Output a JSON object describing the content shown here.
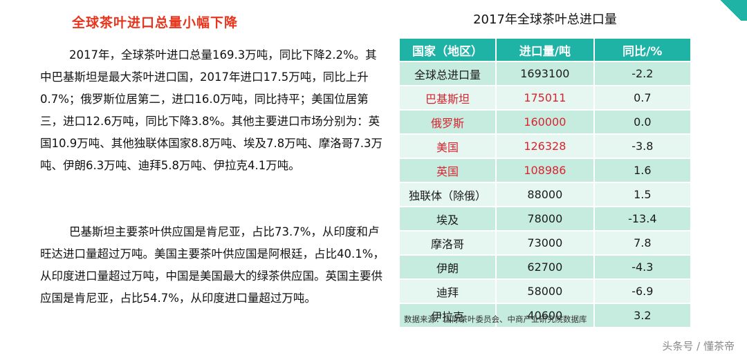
{
  "left": {
    "title": "全球茶叶进口总量小幅下降",
    "paragraph1": "2017年，全球茶叶进口总量169.3万吨，同比下降2.2%。其中巴基斯坦是最大茶叶进口国，2017年进口17.5万吨，同比上升0.7%；俄罗斯位居第二，进口16.0万吨，同比持平；美国位居第三，进口12.6万吨，同比下降3.8%。其他主要进口市场分别为：英国10.9万吨、其他独联体国家8.8万吨、埃及7.8万吨、摩洛哥7.3万吨、伊朗6.3万吨、迪拜5.8万吨、伊拉克4.1万吨。",
    "paragraph2": "巴基斯坦主要茶叶供应国是肯尼亚，占比73.7%，从印度和卢旺达进口量超过万吨。美国主要茶叶供应国是阿根廷，占比40.1%，从印度进口量超过万吨，中国是美国最大的绿茶供应国。英国主要供应国是肯尼亚，占比54.7%，从印度进口量超过万吨。"
  },
  "table": {
    "title": "2017年全球茶叶总进口量",
    "headers": [
      "国家（地区）",
      "进口量/吨",
      "同比/%"
    ],
    "rows": [
      {
        "country": "全球总进口量",
        "volume": "1693100",
        "yoy": "-2.2",
        "highlight": false
      },
      {
        "country": "巴基斯坦",
        "volume": "175011",
        "yoy": "0.7",
        "highlight": true
      },
      {
        "country": "俄罗斯",
        "volume": "160000",
        "yoy": "0.0",
        "highlight": true
      },
      {
        "country": "美国",
        "volume": "126328",
        "yoy": "-3.8",
        "highlight": true
      },
      {
        "country": "英国",
        "volume": "108986",
        "yoy": "1.6",
        "highlight": true
      },
      {
        "country": "独联体（除俄）",
        "volume": "88000",
        "yoy": "1.5",
        "highlight": false
      },
      {
        "country": "埃及",
        "volume": "78000",
        "yoy": "-13.4",
        "highlight": false
      },
      {
        "country": "摩洛哥",
        "volume": "73000",
        "yoy": "7.8",
        "highlight": false
      },
      {
        "country": "伊朗",
        "volume": "62700",
        "yoy": "-4.3",
        "highlight": false
      },
      {
        "country": "迪拜",
        "volume": "58000",
        "yoy": "-6.9",
        "highlight": false
      },
      {
        "country": "伊拉克",
        "volume": "40600",
        "yoy": "3.2",
        "highlight": false
      }
    ],
    "source": "数据来源：国际茶叶委员会、中商产业研究院数据库"
  },
  "watermark": "头条号 / 懂茶帝",
  "colors": {
    "accent": "#1fb3a6",
    "title_red": "#e8341c",
    "row_highlight_text": "#d9232e"
  }
}
